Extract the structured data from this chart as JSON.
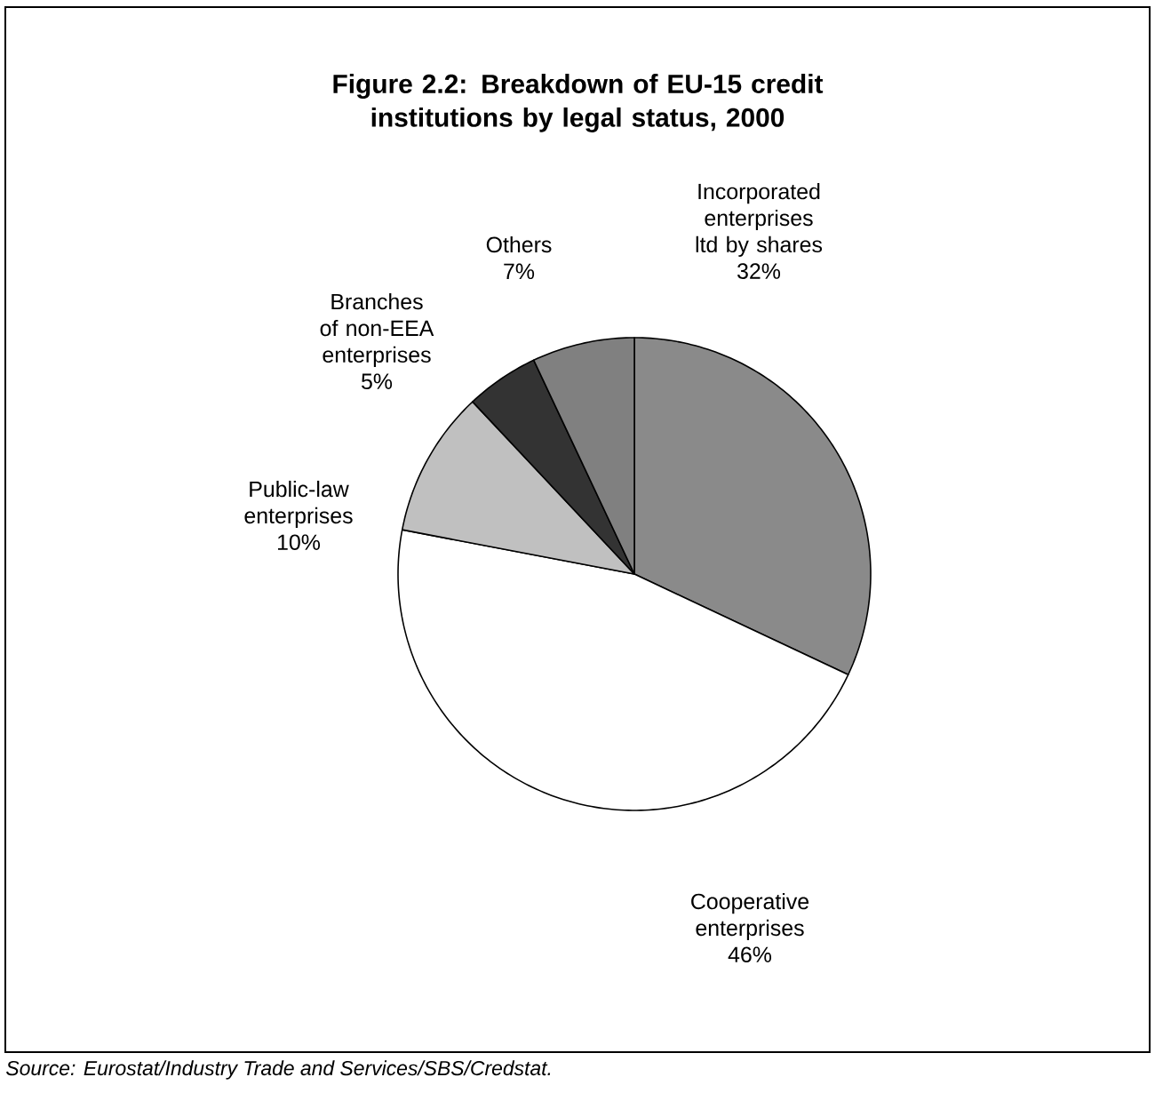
{
  "chart_data": {
    "type": "pie",
    "title": "Figure 2.2: Breakdown of EU-15 credit institutions by legal status, 2000",
    "categories": [
      "Incorporated enterprises ltd by shares",
      "Cooperative enterprises",
      "Public-law enterprises",
      "Branches of non-EEA enterprises",
      "Others"
    ],
    "values": [
      32,
      46,
      10,
      5,
      7
    ],
    "value_labels": [
      "32%",
      "46%",
      "10%",
      "5%",
      "7%"
    ],
    "colors": [
      "#8a8a8a",
      "#ffffff",
      "#c0c0c0",
      "#333333",
      "#808080"
    ],
    "annotations": [
      "Source: Eurostat/Industry Trade and Services/SBS/Credstat."
    ]
  }
}
